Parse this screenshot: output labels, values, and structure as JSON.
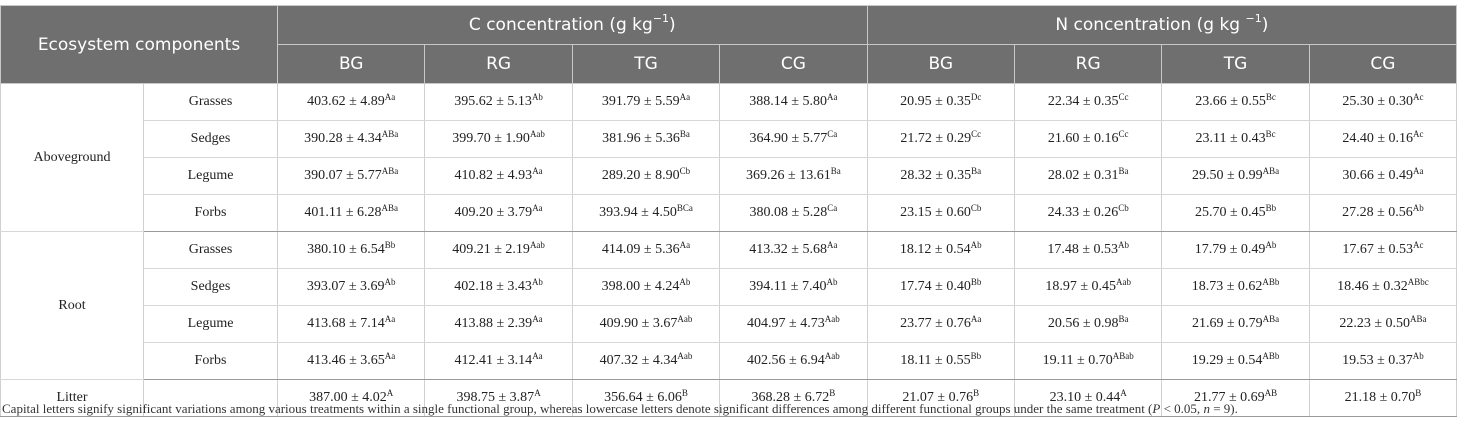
{
  "table": {
    "header": {
      "corner": "Ecosystem components",
      "groups": [
        {
          "title": {
            "pre": "C concentration (g kg",
            "sup": "−1",
            "post": ")"
          },
          "columns": [
            "BG",
            "RG",
            "TG",
            "CG"
          ]
        },
        {
          "title": {
            "pre": "N concentration (g kg ",
            "sup": "−1",
            "post": ")"
          },
          "columns": [
            "BG",
            "RG",
            "TG",
            "CG"
          ]
        }
      ]
    },
    "groups": [
      {
        "name": "Aboveground",
        "rows": [
          {
            "name": "Grasses",
            "cells": [
              [
                "403.62 ± 4.89",
                "Aa"
              ],
              [
                "395.62 ± 5.13",
                "Ab"
              ],
              [
                "391.79 ± 5.59",
                "Aa"
              ],
              [
                "388.14 ± 5.80",
                "Aa"
              ],
              [
                "20.95 ± 0.35",
                "Dc"
              ],
              [
                "22.34 ± 0.35",
                "Cc"
              ],
              [
                "23.66 ± 0.55",
                "Bc"
              ],
              [
                "25.30 ± 0.30",
                "Ac"
              ]
            ]
          },
          {
            "name": "Sedges",
            "cells": [
              [
                "390.28 ± 4.34",
                "ABa"
              ],
              [
                "399.70 ± 1.90",
                "Aab"
              ],
              [
                "381.96 ± 5.36",
                "Ba"
              ],
              [
                "364.90 ± 5.77",
                "Ca"
              ],
              [
                "21.72 ± 0.29",
                "Cc"
              ],
              [
                "21.60 ± 0.16",
                "Cc"
              ],
              [
                "23.11 ± 0.43",
                "Bc"
              ],
              [
                "24.40 ± 0.16",
                "Ac"
              ]
            ]
          },
          {
            "name": "Legume",
            "cells": [
              [
                "390.07 ± 5.77",
                "ABa"
              ],
              [
                "410.82 ± 4.93",
                "Aa"
              ],
              [
                "289.20 ± 8.90",
                "Cb"
              ],
              [
                "369.26 ± 13.61",
                "Ba"
              ],
              [
                "28.32 ± 0.35",
                "Ba"
              ],
              [
                "28.02 ± 0.31",
                "Ba"
              ],
              [
                "29.50 ± 0.99",
                "ABa"
              ],
              [
                "30.66 ± 0.49",
                "Aa"
              ]
            ]
          },
          {
            "name": "Forbs",
            "cells": [
              [
                "401.11 ± 6.28",
                "ABa"
              ],
              [
                "409.20 ± 3.79",
                "Aa"
              ],
              [
                "393.94 ± 4.50",
                "BCa"
              ],
              [
                "380.08 ± 5.28",
                "Ca"
              ],
              [
                "23.15 ± 0.60",
                "Cb"
              ],
              [
                "24.33 ± 0.26",
                "Cb"
              ],
              [
                "25.70 ± 0.45",
                "Bb"
              ],
              [
                "27.28 ± 0.56",
                "Ab"
              ]
            ]
          }
        ]
      },
      {
        "name": "Root",
        "rows": [
          {
            "name": "Grasses",
            "cells": [
              [
                "380.10 ± 6.54",
                "Bb"
              ],
              [
                "409.21 ± 2.19",
                "Aab"
              ],
              [
                "414.09 ± 5.36",
                "Aa"
              ],
              [
                "413.32 ± 5.68",
                "Aa"
              ],
              [
                "18.12 ± 0.54",
                "Ab"
              ],
              [
                "17.48 ± 0.53",
                "Ab"
              ],
              [
                "17.79 ± 0.49",
                "Ab"
              ],
              [
                "17.67 ± 0.53",
                "Ac"
              ]
            ]
          },
          {
            "name": "Sedges",
            "cells": [
              [
                "393.07 ± 3.69",
                "Ab"
              ],
              [
                "402.18 ± 3.43",
                "Ab"
              ],
              [
                "398.00 ± 4.24",
                "Ab"
              ],
              [
                "394.11 ± 7.40",
                "Ab"
              ],
              [
                "17.74 ± 0.40",
                "Bb"
              ],
              [
                "18.97 ± 0.45",
                "Aab"
              ],
              [
                "18.73 ± 0.62",
                "ABb"
              ],
              [
                "18.46 ± 0.32",
                "ABbc"
              ]
            ]
          },
          {
            "name": "Legume",
            "cells": [
              [
                "413.68 ± 7.14",
                "Aa"
              ],
              [
                "413.88 ± 2.39",
                "Aa"
              ],
              [
                "409.90 ± 3.67",
                "Aab"
              ],
              [
                "404.97 ± 4.73",
                "Aab"
              ],
              [
                "23.77 ± 0.76",
                "Aa"
              ],
              [
                "20.56 ± 0.98",
                "Ba"
              ],
              [
                "21.69 ± 0.79",
                "ABa"
              ],
              [
                "22.23 ± 0.50",
                "ABa"
              ]
            ]
          },
          {
            "name": "Forbs",
            "cells": [
              [
                "413.46 ± 3.65",
                "Aa"
              ],
              [
                "412.41 ± 3.14",
                "Aa"
              ],
              [
                "407.32 ± 4.34",
                "Aab"
              ],
              [
                "402.56 ± 6.94",
                "Aab"
              ],
              [
                "18.11 ± 0.55",
                "Bb"
              ],
              [
                "19.11 ± 0.70",
                "ABab"
              ],
              [
                "19.29 ± 0.54",
                "ABb"
              ],
              [
                "19.53 ± 0.37",
                "Ab"
              ]
            ]
          }
        ]
      },
      {
        "name": "Litter",
        "rows": [
          {
            "cells": [
              [
                "387.00 ± 4.02",
                "A"
              ],
              [
                "398.75 ± 3.87",
                "A"
              ],
              [
                "356.64 ± 6.06",
                "B"
              ],
              [
                "368.28 ± 6.72",
                "B"
              ],
              [
                "21.07 ± 0.76",
                "B"
              ],
              [
                "23.10 ± 0.44",
                "A"
              ],
              [
                "21.77 ± 0.69",
                "AB"
              ],
              [
                "21.18 ± 0.70",
                "B"
              ]
            ]
          }
        ]
      }
    ],
    "footnote": [
      "Capital letters signify significant variations among various treatments within a single functional group, whereas lowercase letters denote significant differences among different functional groups under the same treatment (",
      "P",
      " < 0.05, ",
      "n",
      " = 9)."
    ]
  }
}
